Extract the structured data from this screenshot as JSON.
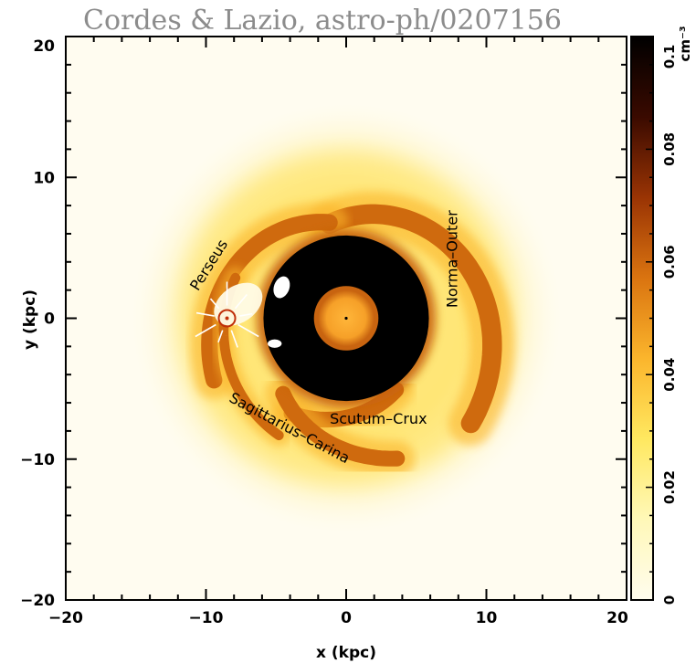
{
  "credit": "Cordes & Lazio, astro-ph/0207156",
  "chart_data": {
    "type": "heatmap",
    "title": "",
    "xlabel": "x (kpc)",
    "ylabel": "y (kpc)",
    "xlim": [
      -20,
      20
    ],
    "ylim": [
      -20,
      20
    ],
    "xticks": [
      -20,
      -10,
      0,
      10,
      20
    ],
    "yticks": [
      -20,
      -10,
      0,
      10,
      20
    ],
    "xtick_labels": [
      "−20",
      "−10",
      "0",
      "10",
      "20"
    ],
    "ytick_labels": [
      "−20",
      "−10",
      "0",
      "10",
      "20"
    ],
    "grid": false,
    "colorbar": {
      "label": "cm⁻³",
      "min": 0,
      "max": 0.1,
      "ticks": [
        0,
        0.02,
        0.04,
        0.06,
        0.08,
        0.1
      ],
      "tick_labels": [
        "0",
        "0.02",
        "0.04",
        "0.06",
        "0.08",
        "0.1"
      ],
      "colors": [
        "#fffcee",
        "#fff8b8",
        "#ffe860",
        "#fbb52c",
        "#da7410",
        "#9a3404",
        "#3a0a00",
        "#000000"
      ]
    },
    "arm_labels": [
      {
        "text": "Perseus",
        "x": -9.5,
        "y": 3.6
      },
      {
        "text": "Norma–Outer",
        "x": 7.9,
        "y": 4.2
      },
      {
        "text": "Scutum–Crux",
        "x": 2.3,
        "y": -7.5
      },
      {
        "text": "Sagittarius–Carina",
        "x": -4.2,
        "y": -8.1
      }
    ],
    "features": {
      "sun_position": [
        -8.5,
        0
      ],
      "galactic_center": [
        0,
        0
      ]
    }
  }
}
